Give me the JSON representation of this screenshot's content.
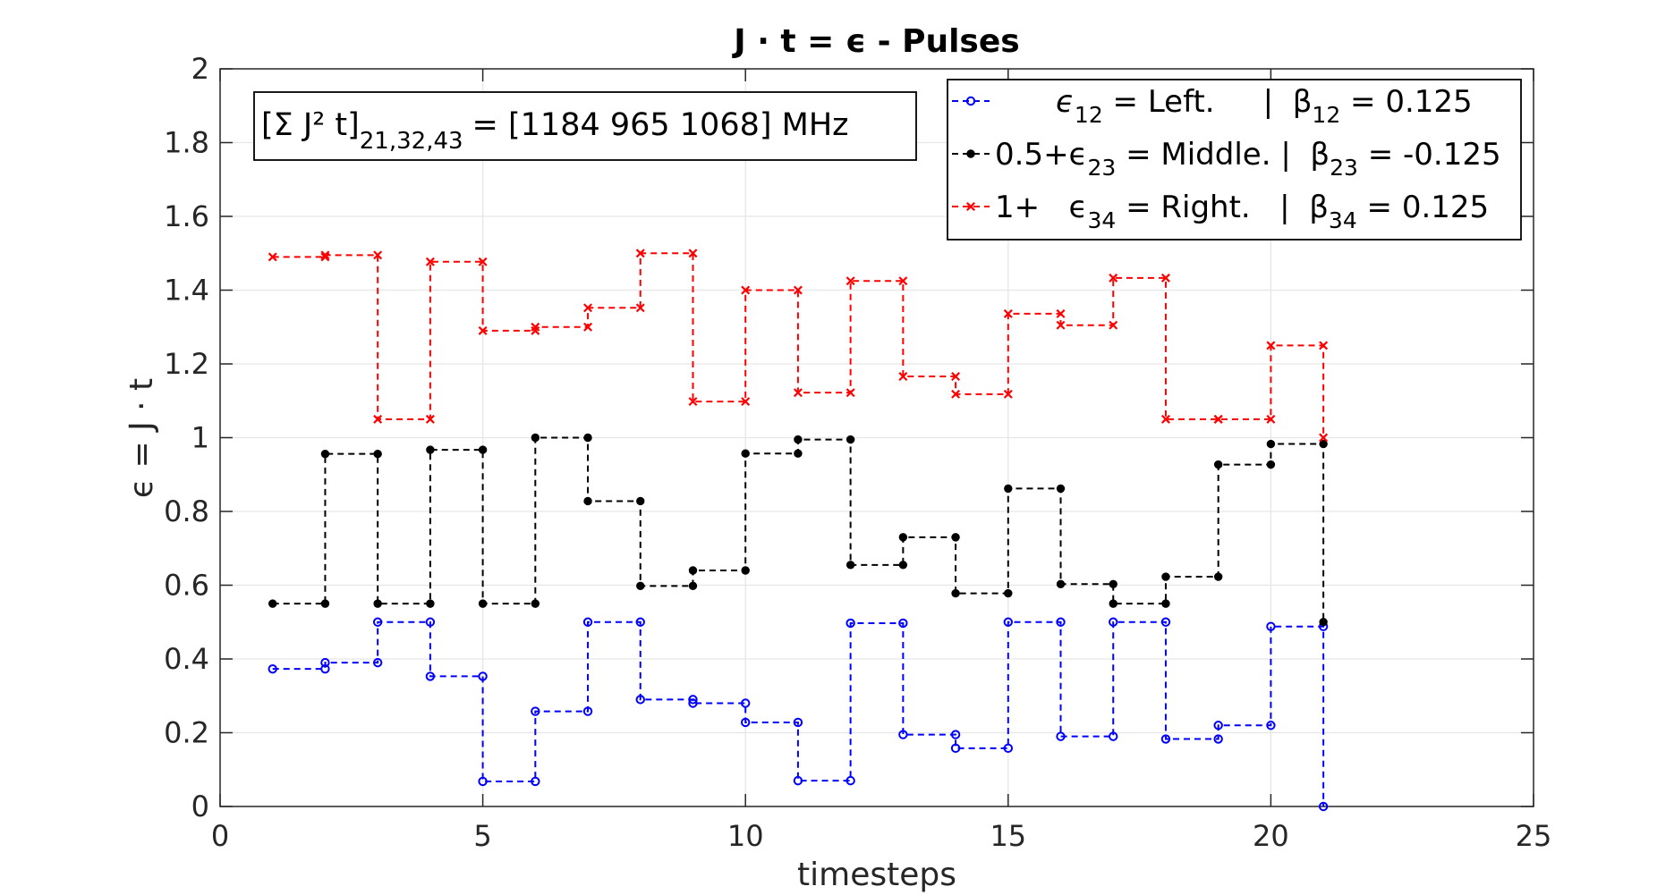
{
  "chart_data": {
    "type": "line",
    "step": "post",
    "title": "J · t = ϵ - Pulses",
    "xlabel": "timesteps",
    "ylabel": "ϵ = J · t",
    "xlim": [
      0,
      25
    ],
    "ylim": [
      0,
      2
    ],
    "x_ticks": [
      "0",
      "5",
      "10",
      "15",
      "20",
      "25"
    ],
    "y_ticks": [
      "0",
      "0.2",
      "0.4",
      "0.6",
      "0.8",
      "1",
      "1.2",
      "1.4",
      "1.6",
      "1.8",
      "2"
    ],
    "grid": true,
    "legend_placement": "top-right",
    "annotation": {
      "sum_label": "[Σ J² t]",
      "sum_subscript": "21,32,43",
      "values_text": "= [1184  965 1068] MHz"
    },
    "series": [
      {
        "name": "ϵ12 = Left.     |  β12 = 0.125",
        "legend_text": {
          "p1": "ϵ",
          "s1": "12",
          "p2": " = Left.     |  β",
          "s2": "12",
          "p3": " = 0.125"
        },
        "color": "#0000ff",
        "marker": "circle",
        "x": [
          1,
          2,
          3,
          4,
          5,
          6,
          7,
          8,
          9,
          10,
          11,
          12,
          13,
          14,
          15,
          16,
          17,
          18,
          19,
          20,
          21
        ],
        "values": [
          0.373,
          0.39,
          0.5,
          0.353,
          0.068,
          0.258,
          0.5,
          0.29,
          0.28,
          0.228,
          0.07,
          0.497,
          0.195,
          0.158,
          0.5,
          0.19,
          0.5,
          0.183,
          0.22,
          0.488,
          0.0
        ]
      },
      {
        "name": "0.5+ϵ23 = Middle. |  β23 = -0.125",
        "legend_text": {
          "p1": "0.5+ϵ",
          "s1": "23",
          "p2": " = Middle. |  β",
          "s2": "23",
          "p3": " = -0.125"
        },
        "color": "#000000",
        "marker": "dot",
        "x": [
          1,
          2,
          3,
          4,
          5,
          6,
          7,
          8,
          9,
          10,
          11,
          12,
          13,
          14,
          15,
          16,
          17,
          18,
          19,
          20,
          21
        ],
        "values": [
          0.55,
          0.956,
          0.55,
          0.967,
          0.55,
          1.0,
          0.828,
          0.598,
          0.64,
          0.957,
          0.995,
          0.655,
          0.73,
          0.578,
          0.862,
          0.603,
          0.55,
          0.623,
          0.927,
          0.983,
          0.5
        ]
      },
      {
        "name": "1+  ϵ34 = Right.   |  β34 = 0.125",
        "legend_text": {
          "p1": "1+   ϵ",
          "s1": "34",
          "p2": " = Right.   |  β",
          "s2": "34",
          "p3": " = 0.125"
        },
        "color": "#ff0000",
        "marker": "x",
        "x": [
          1,
          2,
          3,
          4,
          5,
          6,
          7,
          8,
          9,
          10,
          11,
          12,
          13,
          14,
          15,
          16,
          17,
          18,
          19,
          20,
          21
        ],
        "values": [
          1.49,
          1.495,
          1.05,
          1.477,
          1.29,
          1.3,
          1.352,
          1.5,
          1.098,
          1.4,
          1.122,
          1.425,
          1.166,
          1.118,
          1.336,
          1.305,
          1.433,
          1.05,
          1.05,
          1.25,
          1.0
        ]
      }
    ]
  }
}
